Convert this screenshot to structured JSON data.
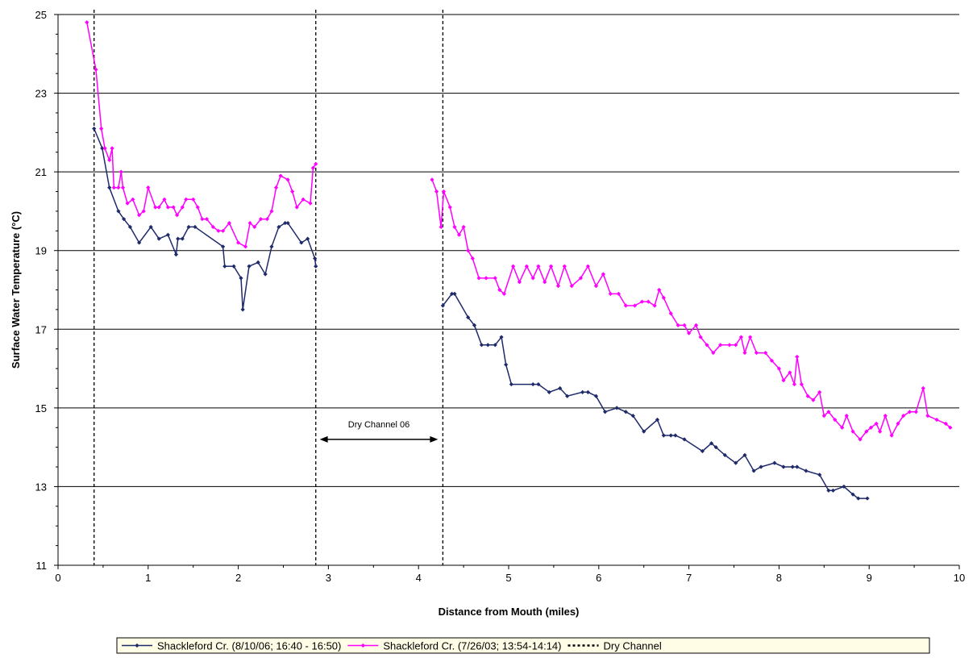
{
  "chart_data": {
    "type": "line",
    "title": "",
    "xlabel": "Distance from Mouth (miles)",
    "ylabel": "Surface Water Temperature (°C)",
    "xlim": [
      0,
      10
    ],
    "ylim": [
      11,
      25
    ],
    "xticks": [
      "0",
      "1",
      "2",
      "3",
      "4",
      "5",
      "6",
      "7",
      "8",
      "9",
      "10"
    ],
    "yticks": [
      "11",
      "13",
      "15",
      "17",
      "19",
      "21",
      "23",
      "25"
    ],
    "grid": "horizontal",
    "legend_position": "bottom",
    "annotation": {
      "text": "Dry Channel 06",
      "x_start": 2.85,
      "x_end": 4.27,
      "y": 14.2
    },
    "series": [
      {
        "name": "Shackleford Cr. (8/10/06; 16:40 - 16:50)",
        "color": "#1f2a6b",
        "marker": "diamond",
        "segments": [
          [
            [
              0.4,
              22.1
            ],
            [
              0.49,
              21.6
            ],
            [
              0.57,
              20.6
            ],
            [
              0.67,
              20.0
            ],
            [
              0.73,
              19.8
            ],
            [
              0.8,
              19.6
            ],
            [
              0.9,
              19.2
            ],
            [
              1.03,
              19.6
            ],
            [
              1.12,
              19.3
            ],
            [
              1.22,
              19.4
            ],
            [
              1.31,
              18.9
            ],
            [
              1.33,
              19.3
            ],
            [
              1.38,
              19.3
            ],
            [
              1.45,
              19.6
            ],
            [
              1.52,
              19.6
            ],
            [
              1.83,
              19.1
            ],
            [
              1.85,
              18.6
            ],
            [
              1.95,
              18.6
            ],
            [
              2.03,
              18.3
            ],
            [
              2.05,
              17.5
            ],
            [
              2.12,
              18.6
            ],
            [
              2.22,
              18.7
            ],
            [
              2.3,
              18.4
            ],
            [
              2.37,
              19.1
            ],
            [
              2.45,
              19.6
            ],
            [
              2.52,
              19.7
            ],
            [
              2.55,
              19.7
            ],
            [
              2.7,
              19.2
            ],
            [
              2.77,
              19.3
            ],
            [
              2.85,
              18.8
            ],
            [
              2.86,
              18.6
            ]
          ],
          [
            [
              4.27,
              17.6
            ],
            [
              4.37,
              17.9
            ],
            [
              4.4,
              17.9
            ],
            [
              4.55,
              17.3
            ],
            [
              4.62,
              17.1
            ],
            [
              4.7,
              16.6
            ],
            [
              4.77,
              16.6
            ],
            [
              4.85,
              16.6
            ],
            [
              4.92,
              16.8
            ],
            [
              4.97,
              16.1
            ],
            [
              5.03,
              15.6
            ],
            [
              5.27,
              15.6
            ],
            [
              5.33,
              15.6
            ],
            [
              5.45,
              15.4
            ],
            [
              5.57,
              15.5
            ],
            [
              5.65,
              15.3
            ],
            [
              5.82,
              15.4
            ],
            [
              5.88,
              15.4
            ],
            [
              5.97,
              15.3
            ],
            [
              6.07,
              14.9
            ],
            [
              6.2,
              15.0
            ],
            [
              6.3,
              14.9
            ],
            [
              6.38,
              14.8
            ],
            [
              6.5,
              14.4
            ],
            [
              6.65,
              14.7
            ],
            [
              6.72,
              14.3
            ],
            [
              6.8,
              14.3
            ],
            [
              6.85,
              14.3
            ],
            [
              6.95,
              14.2
            ],
            [
              7.15,
              13.9
            ],
            [
              7.25,
              14.1
            ],
            [
              7.3,
              14.0
            ],
            [
              7.4,
              13.8
            ],
            [
              7.52,
              13.6
            ],
            [
              7.62,
              13.8
            ],
            [
              7.72,
              13.4
            ],
            [
              7.8,
              13.5
            ],
            [
              7.95,
              13.6
            ],
            [
              8.05,
              13.5
            ],
            [
              8.15,
              13.5
            ],
            [
              8.2,
              13.5
            ],
            [
              8.3,
              13.4
            ],
            [
              8.45,
              13.3
            ],
            [
              8.55,
              12.9
            ],
            [
              8.6,
              12.9
            ],
            [
              8.72,
              13.0
            ],
            [
              8.82,
              12.8
            ],
            [
              8.88,
              12.7
            ],
            [
              8.98,
              12.7
            ]
          ]
        ]
      },
      {
        "name": "Shackleford Cr. (7/26/03; 13:54-14:14)",
        "color": "#ff00ff",
        "marker": "diamond",
        "segments": [
          [
            [
              0.32,
              24.8
            ],
            [
              0.42,
              23.6
            ],
            [
              0.48,
              22.1
            ],
            [
              0.52,
              21.6
            ],
            [
              0.57,
              21.3
            ],
            [
              0.6,
              21.6
            ],
            [
              0.62,
              20.6
            ],
            [
              0.67,
              20.6
            ],
            [
              0.7,
              21.0
            ],
            [
              0.72,
              20.6
            ],
            [
              0.77,
              20.2
            ],
            [
              0.83,
              20.3
            ],
            [
              0.9,
              19.9
            ],
            [
              0.95,
              20.0
            ],
            [
              1.0,
              20.6
            ],
            [
              1.08,
              20.1
            ],
            [
              1.12,
              20.1
            ],
            [
              1.18,
              20.3
            ],
            [
              1.22,
              20.1
            ],
            [
              1.28,
              20.1
            ],
            [
              1.32,
              19.9
            ],
            [
              1.38,
              20.1
            ],
            [
              1.42,
              20.3
            ],
            [
              1.5,
              20.3
            ],
            [
              1.55,
              20.1
            ],
            [
              1.6,
              19.8
            ],
            [
              1.65,
              19.8
            ],
            [
              1.72,
              19.6
            ],
            [
              1.78,
              19.5
            ],
            [
              1.83,
              19.5
            ],
            [
              1.9,
              19.7
            ],
            [
              2.0,
              19.2
            ],
            [
              2.08,
              19.1
            ],
            [
              2.13,
              19.7
            ],
            [
              2.18,
              19.6
            ],
            [
              2.25,
              19.8
            ],
            [
              2.32,
              19.8
            ],
            [
              2.37,
              20.0
            ],
            [
              2.42,
              20.6
            ],
            [
              2.47,
              20.9
            ],
            [
              2.55,
              20.8
            ],
            [
              2.6,
              20.5
            ],
            [
              2.65,
              20.1
            ],
            [
              2.72,
              20.3
            ],
            [
              2.8,
              20.2
            ],
            [
              2.83,
              21.1
            ],
            [
              2.86,
              21.2
            ]
          ],
          [
            [
              4.15,
              20.8
            ],
            [
              4.2,
              20.5
            ],
            [
              4.25,
              19.6
            ],
            [
              4.28,
              20.5
            ],
            [
              4.35,
              20.1
            ],
            [
              4.4,
              19.6
            ],
            [
              4.45,
              19.4
            ],
            [
              4.5,
              19.6
            ],
            [
              4.55,
              19.0
            ],
            [
              4.6,
              18.8
            ],
            [
              4.67,
              18.3
            ],
            [
              4.75,
              18.3
            ],
            [
              4.85,
              18.3
            ],
            [
              4.9,
              18.0
            ],
            [
              4.95,
              17.9
            ],
            [
              5.05,
              18.6
            ],
            [
              5.12,
              18.2
            ],
            [
              5.2,
              18.6
            ],
            [
              5.27,
              18.3
            ],
            [
              5.33,
              18.6
            ],
            [
              5.4,
              18.2
            ],
            [
              5.47,
              18.6
            ],
            [
              5.55,
              18.1
            ],
            [
              5.62,
              18.6
            ],
            [
              5.7,
              18.1
            ],
            [
              5.8,
              18.3
            ],
            [
              5.88,
              18.6
            ],
            [
              5.97,
              18.1
            ],
            [
              6.05,
              18.4
            ],
            [
              6.13,
              17.9
            ],
            [
              6.22,
              17.9
            ],
            [
              6.3,
              17.6
            ],
            [
              6.4,
              17.6
            ],
            [
              6.48,
              17.7
            ],
            [
              6.55,
              17.7
            ],
            [
              6.62,
              17.6
            ],
            [
              6.67,
              18.0
            ],
            [
              6.72,
              17.8
            ],
            [
              6.8,
              17.4
            ],
            [
              6.88,
              17.1
            ],
            [
              6.95,
              17.1
            ],
            [
              7.0,
              16.9
            ],
            [
              7.08,
              17.1
            ],
            [
              7.13,
              16.8
            ],
            [
              7.2,
              16.6
            ],
            [
              7.27,
              16.4
            ],
            [
              7.35,
              16.6
            ],
            [
              7.45,
              16.6
            ],
            [
              7.52,
              16.6
            ],
            [
              7.58,
              16.8
            ],
            [
              7.62,
              16.4
            ],
            [
              7.68,
              16.8
            ],
            [
              7.75,
              16.4
            ],
            [
              7.85,
              16.4
            ],
            [
              7.92,
              16.2
            ],
            [
              8.0,
              16.0
            ],
            [
              8.05,
              15.7
            ],
            [
              8.12,
              15.9
            ],
            [
              8.17,
              15.6
            ],
            [
              8.2,
              16.3
            ],
            [
              8.25,
              15.6
            ],
            [
              8.32,
              15.3
            ],
            [
              8.38,
              15.2
            ],
            [
              8.45,
              15.4
            ],
            [
              8.5,
              14.8
            ],
            [
              8.55,
              14.9
            ],
            [
              8.62,
              14.7
            ],
            [
              8.7,
              14.5
            ],
            [
              8.75,
              14.8
            ],
            [
              8.82,
              14.4
            ],
            [
              8.9,
              14.2
            ],
            [
              8.97,
              14.4
            ],
            [
              9.02,
              14.5
            ],
            [
              9.08,
              14.6
            ],
            [
              9.12,
              14.4
            ],
            [
              9.18,
              14.8
            ],
            [
              9.25,
              14.3
            ],
            [
              9.32,
              14.6
            ],
            [
              9.38,
              14.8
            ],
            [
              9.45,
              14.9
            ],
            [
              9.52,
              14.9
            ],
            [
              9.6,
              15.5
            ],
            [
              9.65,
              14.8
            ],
            [
              9.75,
              14.7
            ],
            [
              9.85,
              14.6
            ],
            [
              9.9,
              14.5
            ]
          ]
        ]
      },
      {
        "name": "Dry Channel",
        "color": "#000000",
        "style": "dotted",
        "x_positions": [
          0.4,
          2.86,
          4.27
        ]
      }
    ]
  }
}
